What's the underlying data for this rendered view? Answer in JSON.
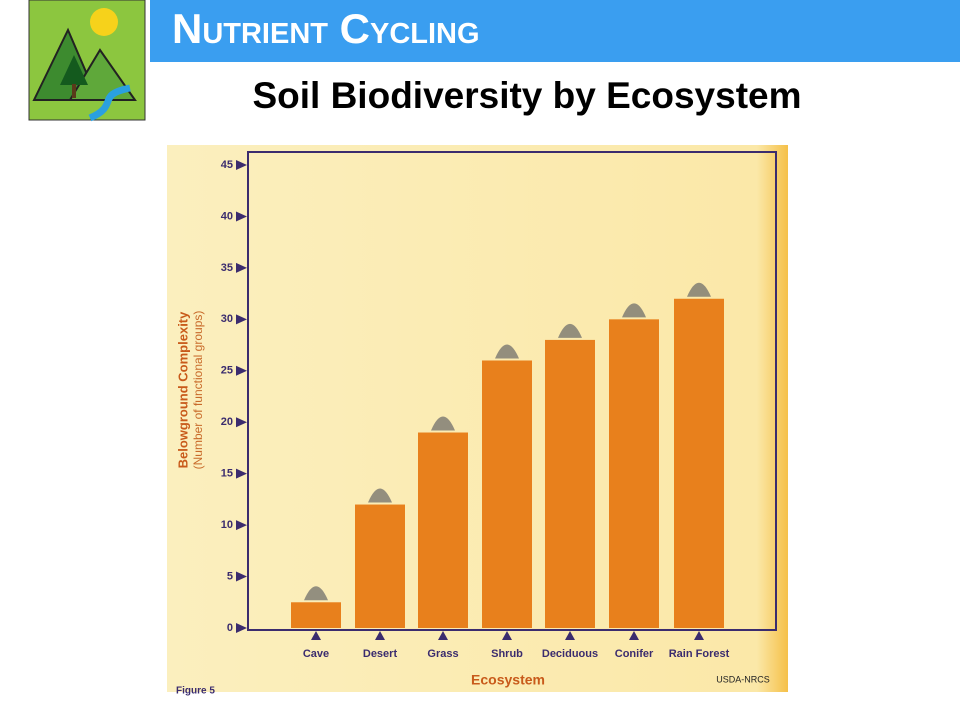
{
  "header": {
    "title": "Nutrient Cycling"
  },
  "chart_data": {
    "type": "bar",
    "title": "Soil Biodiversity by Ecosystem",
    "y_label": "Belowground Complexity",
    "y_sublabel": "(Number of functional groups)",
    "x_label": "Ecosystem",
    "categories": [
      "Cave",
      "Desert",
      "Grass",
      "Shrub",
      "Deciduous",
      "Conifer",
      "Rain Forest"
    ],
    "values": [
      2.5,
      12,
      19,
      26,
      28,
      30,
      32
    ],
    "color": "#e8801c",
    "ylim": [
      0,
      45
    ],
    "yticks": [
      0,
      5,
      10,
      15,
      20,
      25,
      30,
      35,
      40,
      45
    ],
    "figure_label": "Figure 5",
    "credit": "USDA-NRCS"
  }
}
